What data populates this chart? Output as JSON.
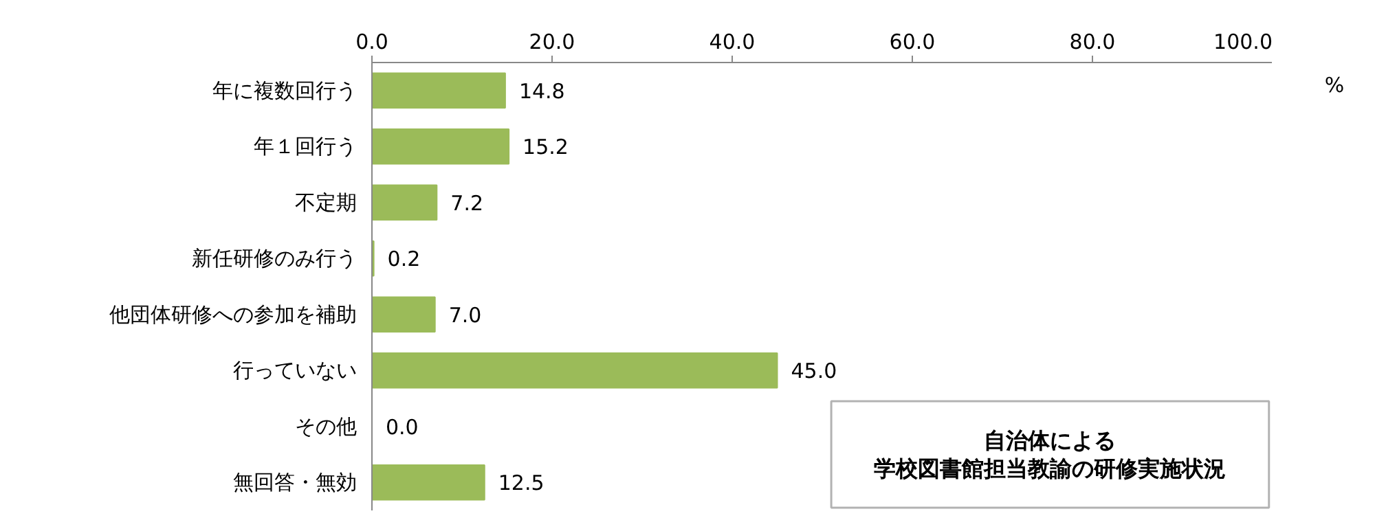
{
  "chart_data": {
    "type": "bar",
    "orientation": "horizontal",
    "title": "自治体による",
    "subtitle": "学校図書館担当教諭の研修実施状況",
    "xlabel": "%",
    "categories": [
      "年に複数回行う",
      "年１回行う",
      "不定期",
      "新任研修のみ行う",
      "他団体研修への参加を補助",
      "行っていない",
      "その他",
      "無回答・無効"
    ],
    "values": [
      14.8,
      15.2,
      7.2,
      0.2,
      7.0,
      45.0,
      0.0,
      12.5
    ],
    "color": "#9bbb59",
    "xlim": [
      0,
      100
    ],
    "xticks": [
      {
        "value": 0,
        "label": "0.0"
      },
      {
        "value": 20,
        "label": "20.0"
      },
      {
        "value": 40,
        "label": "40.0"
      },
      {
        "value": 60,
        "label": "60.0"
      },
      {
        "value": 80,
        "label": "80.0"
      },
      {
        "value": 100,
        "label": "100.0"
      }
    ],
    "value_labels": [
      "14.8",
      "15.2",
      "7.2",
      "0.2",
      "7.0",
      "45.0",
      "0.0",
      "12.5"
    ],
    "grid": false
  }
}
